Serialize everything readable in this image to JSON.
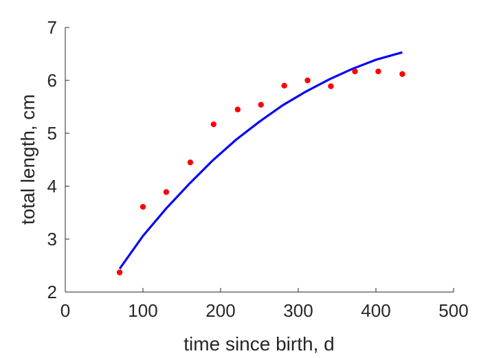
{
  "chart_data": {
    "type": "scatter",
    "xlabel": "time since birth, d",
    "ylabel": "total length, cm",
    "xlim": [
      0,
      500
    ],
    "ylim": [
      2,
      7
    ],
    "xticks": [
      0,
      100,
      200,
      300,
      400,
      500
    ],
    "yticks": [
      2,
      3,
      4,
      5,
      6,
      7
    ],
    "xtick_labels": [
      "0",
      "100",
      "200",
      "300",
      "400",
      "500"
    ],
    "ytick_labels": [
      "2",
      "3",
      "4",
      "5",
      "6",
      "7"
    ],
    "grid": false,
    "series": [
      {
        "type": "scatter",
        "color": "#ff0000",
        "x": [
          70,
          100,
          130,
          161,
          191,
          222,
          252,
          282,
          312,
          342,
          373,
          403,
          434
        ],
        "y": [
          2.37,
          3.61,
          3.89,
          4.45,
          5.17,
          5.45,
          5.54,
          5.9,
          6.0,
          5.89,
          6.17,
          6.17,
          6.12
        ]
      },
      {
        "type": "line",
        "color": "#0000ff",
        "x": [
          70,
          100,
          130,
          160,
          190,
          220,
          250,
          280,
          310,
          340,
          370,
          400,
          434
        ],
        "y": [
          2.44,
          3.06,
          3.58,
          4.05,
          4.49,
          4.88,
          5.22,
          5.53,
          5.79,
          6.02,
          6.22,
          6.39,
          6.53
        ]
      }
    ]
  }
}
